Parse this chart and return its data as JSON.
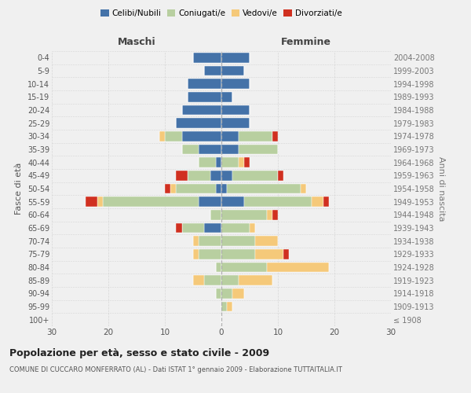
{
  "age_groups": [
    "100+",
    "95-99",
    "90-94",
    "85-89",
    "80-84",
    "75-79",
    "70-74",
    "65-69",
    "60-64",
    "55-59",
    "50-54",
    "45-49",
    "40-44",
    "35-39",
    "30-34",
    "25-29",
    "20-24",
    "15-19",
    "10-14",
    "5-9",
    "0-4"
  ],
  "birth_years": [
    "≤ 1908",
    "1909-1913",
    "1914-1918",
    "1919-1923",
    "1924-1928",
    "1929-1933",
    "1934-1938",
    "1939-1943",
    "1944-1948",
    "1949-1953",
    "1954-1958",
    "1959-1963",
    "1964-1968",
    "1969-1973",
    "1974-1978",
    "1979-1983",
    "1984-1988",
    "1989-1993",
    "1994-1998",
    "1999-2003",
    "2004-2008"
  ],
  "colors": {
    "celibe": "#4472a8",
    "coniugato": "#b8cfa0",
    "vedovo": "#f5c97a",
    "divorziato": "#d03020"
  },
  "maschi": {
    "celibe": [
      0,
      0,
      0,
      0,
      0,
      0,
      0,
      3,
      0,
      4,
      1,
      2,
      1,
      4,
      7,
      8,
      7,
      6,
      6,
      3,
      5
    ],
    "coniugato": [
      0,
      0,
      1,
      3,
      1,
      4,
      4,
      4,
      2,
      17,
      7,
      4,
      3,
      3,
      3,
      0,
      0,
      0,
      0,
      0,
      0
    ],
    "vedovo": [
      0,
      0,
      0,
      2,
      0,
      1,
      1,
      0,
      0,
      1,
      1,
      0,
      0,
      0,
      1,
      0,
      0,
      0,
      0,
      0,
      0
    ],
    "divorziato": [
      0,
      0,
      0,
      0,
      0,
      0,
      0,
      1,
      0,
      2,
      1,
      2,
      0,
      0,
      0,
      0,
      0,
      0,
      0,
      0,
      0
    ]
  },
  "femmine": {
    "nubile": [
      0,
      0,
      0,
      0,
      0,
      0,
      0,
      0,
      0,
      4,
      1,
      2,
      0,
      3,
      3,
      5,
      5,
      2,
      5,
      4,
      5
    ],
    "coniugata": [
      0,
      1,
      2,
      3,
      8,
      6,
      6,
      5,
      8,
      12,
      13,
      8,
      3,
      7,
      6,
      0,
      0,
      0,
      0,
      0,
      0
    ],
    "vedova": [
      0,
      1,
      2,
      6,
      11,
      5,
      4,
      1,
      1,
      2,
      1,
      0,
      1,
      0,
      0,
      0,
      0,
      0,
      0,
      0,
      0
    ],
    "divorziata": [
      0,
      0,
      0,
      0,
      0,
      1,
      0,
      0,
      1,
      1,
      0,
      1,
      1,
      0,
      1,
      0,
      0,
      0,
      0,
      0,
      0
    ]
  },
  "xlim": 30,
  "title": "Popolazione per età, sesso e stato civile - 2009",
  "subtitle": "COMUNE DI CUCCARO MONFERRATO (AL) - Dati ISTAT 1° gennaio 2009 - Elaborazione TUTTAITALIA.IT",
  "ylabel_left": "Fasce di età",
  "ylabel_right": "Anni di nascita",
  "xlabel_maschi": "Maschi",
  "xlabel_femmine": "Femmine",
  "legend_labels": [
    "Celibi/Nubili",
    "Coniugati/e",
    "Vedovi/e",
    "Divorziati/e"
  ],
  "background_color": "#f0f0f0",
  "bar_height": 0.75
}
